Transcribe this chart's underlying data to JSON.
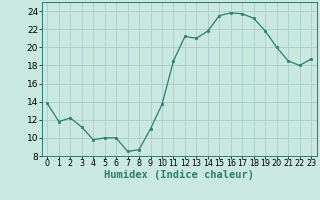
{
  "x": [
    0,
    1,
    2,
    3,
    4,
    5,
    6,
    7,
    8,
    9,
    10,
    11,
    12,
    13,
    14,
    15,
    16,
    17,
    18,
    19,
    20,
    21,
    22,
    23
  ],
  "y": [
    13.8,
    11.8,
    12.2,
    11.2,
    9.8,
    10.0,
    10.0,
    8.5,
    8.7,
    11.0,
    13.7,
    18.5,
    21.2,
    21.0,
    21.8,
    23.5,
    23.8,
    23.7,
    23.2,
    21.8,
    20.0,
    18.5,
    18.0,
    18.7
  ],
  "line_color": "#2e7d6e",
  "marker": "s",
  "marker_size": 2.0,
  "bg_color": "#c8e8e0",
  "grid_color": "#aacccc",
  "xlabel": "Humidex (Indice chaleur)",
  "xlim": [
    -0.5,
    23.5
  ],
  "ylim": [
    8,
    25
  ],
  "yticks": [
    8,
    10,
    12,
    14,
    16,
    18,
    20,
    22,
    24
  ],
  "xticks": [
    0,
    1,
    2,
    3,
    4,
    5,
    6,
    7,
    8,
    9,
    10,
    11,
    12,
    13,
    14,
    15,
    16,
    17,
    18,
    19,
    20,
    21,
    22,
    23
  ],
  "xlabel_fontsize": 7.5,
  "ytick_fontsize": 6.5,
  "xtick_fontsize": 5.8
}
